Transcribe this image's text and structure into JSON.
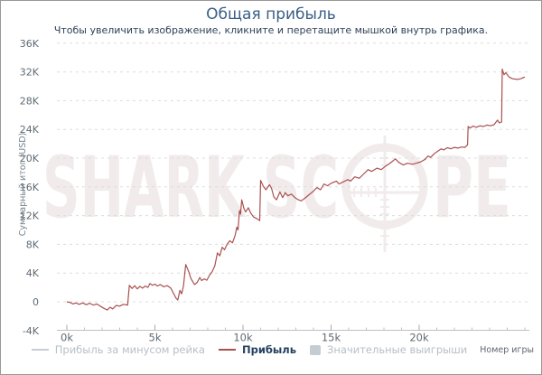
{
  "header": {
    "title": "Общая прибыль",
    "subtitle": "Чтобы увеличить изображение, кликните и перетащите мышкой внутрь графика."
  },
  "colors": {
    "series_line": "#aa5050",
    "grid": "#dcdcdc",
    "axis_line": "#c0c0c0",
    "tick_text": "#606b74",
    "axis_title_text": "#76828c",
    "title_text": "#3a5f86",
    "subtitle_text": "#2e4257",
    "legend_inactive_text": "#b7bfc7",
    "legend_inactive_marker": "#c6ccd3",
    "legend_active_text": "#24405e",
    "watermark": "#f1ebeb",
    "window_border": "#999999"
  },
  "legend": {
    "items": [
      {
        "label": "Прибыль за минусом рейка",
        "marker": "line",
        "active": false
      },
      {
        "label": "Прибыль",
        "marker": "line",
        "active": true
      },
      {
        "label": "Значительные выигрыши",
        "marker": "square",
        "active": false
      }
    ]
  },
  "watermark": {
    "text_left": "SHARK SC",
    "text_right": "PE"
  },
  "chart_data": {
    "type": "line",
    "title": "Общая прибыль",
    "xlabel": "Номер игры",
    "ylabel": "Суммарный итог (USD)",
    "xlim": [
      0,
      27
    ],
    "ylim": [
      -4,
      36
    ],
    "grid": true,
    "legend_position": "bottom",
    "x_ticks": [
      {
        "value": 0,
        "label": "0k"
      },
      {
        "value": 5,
        "label": "5k"
      },
      {
        "value": 10,
        "label": "10k"
      },
      {
        "value": 15,
        "label": "15k"
      },
      {
        "value": 20,
        "label": "20k"
      }
    ],
    "x_minor_tick_step": 1,
    "x_minor_tick_max": 26,
    "y_ticks": [
      {
        "value": 36,
        "label": "36K"
      },
      {
        "value": 32,
        "label": "32K"
      },
      {
        "value": 28,
        "label": "28K"
      },
      {
        "value": 24,
        "label": "24K"
      },
      {
        "value": 20,
        "label": "20K"
      },
      {
        "value": 16,
        "label": "16K"
      },
      {
        "value": 12,
        "label": "12K"
      },
      {
        "value": 8,
        "label": "8K"
      },
      {
        "value": 4,
        "label": "4K"
      },
      {
        "value": 0,
        "label": "0"
      },
      {
        "value": -4,
        "label": "-4K"
      }
    ],
    "series": [
      {
        "name": "Прибыль",
        "color": "#aa5050",
        "x_unit": "thousand games",
        "y_unit": "thousand USD",
        "points": [
          [
            0,
            0
          ],
          [
            0.2,
            -0.1
          ],
          [
            0.35,
            -0.3
          ],
          [
            0.5,
            -0.15
          ],
          [
            0.7,
            -0.35
          ],
          [
            0.9,
            -0.15
          ],
          [
            1.1,
            -0.4
          ],
          [
            1.3,
            -0.2
          ],
          [
            1.5,
            -0.45
          ],
          [
            1.7,
            -0.3
          ],
          [
            1.9,
            -0.6
          ],
          [
            2.1,
            -0.9
          ],
          [
            2.3,
            -1.15
          ],
          [
            2.45,
            -0.75
          ],
          [
            2.6,
            -1.0
          ],
          [
            2.8,
            -0.5
          ],
          [
            3.0,
            -0.6
          ],
          [
            3.2,
            -0.35
          ],
          [
            3.45,
            -0.45
          ],
          [
            3.55,
            2.3
          ],
          [
            3.7,
            1.85
          ],
          [
            3.85,
            2.25
          ],
          [
            4.0,
            1.8
          ],
          [
            4.15,
            2.15
          ],
          [
            4.3,
            1.9
          ],
          [
            4.45,
            2.2
          ],
          [
            4.6,
            2.0
          ],
          [
            4.72,
            2.55
          ],
          [
            4.85,
            2.3
          ],
          [
            5.0,
            2.45
          ],
          [
            5.15,
            2.2
          ],
          [
            5.3,
            2.4
          ],
          [
            5.5,
            2.1
          ],
          [
            5.7,
            2.25
          ],
          [
            5.9,
            1.9
          ],
          [
            6.05,
            1.2
          ],
          [
            6.2,
            0.5
          ],
          [
            6.3,
            0.25
          ],
          [
            6.42,
            1.6
          ],
          [
            6.52,
            1.1
          ],
          [
            6.62,
            2.2
          ],
          [
            6.75,
            5.2
          ],
          [
            6.9,
            4.3
          ],
          [
            7.05,
            3.2
          ],
          [
            7.25,
            2.4
          ],
          [
            7.4,
            2.7
          ],
          [
            7.55,
            3.4
          ],
          [
            7.65,
            2.95
          ],
          [
            7.8,
            3.2
          ],
          [
            7.95,
            3.0
          ],
          [
            8.1,
            3.7
          ],
          [
            8.25,
            4.2
          ],
          [
            8.4,
            5.0
          ],
          [
            8.55,
            6.8
          ],
          [
            8.68,
            6.4
          ],
          [
            8.82,
            7.6
          ],
          [
            8.95,
            7.25
          ],
          [
            9.1,
            8.0
          ],
          [
            9.25,
            8.5
          ],
          [
            9.4,
            8.2
          ],
          [
            9.55,
            9.2
          ],
          [
            9.65,
            10.4
          ],
          [
            9.72,
            10.0
          ],
          [
            9.8,
            12.7
          ],
          [
            9.86,
            12.2
          ],
          [
            9.93,
            14.2
          ],
          [
            10.05,
            13.0
          ],
          [
            10.15,
            12.5
          ],
          [
            10.3,
            13.1
          ],
          [
            10.45,
            12.3
          ],
          [
            10.6,
            11.8
          ],
          [
            10.78,
            11.6
          ],
          [
            10.95,
            11.3
          ],
          [
            11.0,
            16.9
          ],
          [
            11.15,
            16.1
          ],
          [
            11.3,
            15.6
          ],
          [
            11.5,
            16.3
          ],
          [
            11.62,
            15.8
          ],
          [
            11.75,
            14.6
          ],
          [
            11.9,
            14.2
          ],
          [
            12.1,
            15.3
          ],
          [
            12.25,
            14.5
          ],
          [
            12.4,
            15.2
          ],
          [
            12.55,
            14.75
          ],
          [
            12.75,
            15.0
          ],
          [
            12.95,
            14.5
          ],
          [
            13.15,
            14.2
          ],
          [
            13.3,
            14.05
          ],
          [
            13.5,
            14.4
          ],
          [
            13.75,
            14.9
          ],
          [
            13.95,
            15.3
          ],
          [
            14.2,
            15.9
          ],
          [
            14.4,
            15.6
          ],
          [
            14.6,
            16.4
          ],
          [
            14.8,
            16.15
          ],
          [
            15.0,
            16.5
          ],
          [
            15.3,
            16.8
          ],
          [
            15.45,
            16.4
          ],
          [
            15.7,
            16.7
          ],
          [
            15.95,
            17.0
          ],
          [
            16.1,
            16.8
          ],
          [
            16.35,
            17.4
          ],
          [
            16.6,
            17.2
          ],
          [
            16.85,
            17.8
          ],
          [
            17.1,
            18.4
          ],
          [
            17.3,
            18.15
          ],
          [
            17.6,
            18.6
          ],
          [
            17.85,
            18.4
          ],
          [
            18.1,
            18.9
          ],
          [
            18.35,
            19.3
          ],
          [
            18.65,
            19.9
          ],
          [
            18.85,
            19.4
          ],
          [
            19.1,
            19.05
          ],
          [
            19.35,
            19.3
          ],
          [
            19.6,
            19.15
          ],
          [
            19.85,
            19.3
          ],
          [
            20.1,
            19.5
          ],
          [
            20.35,
            19.85
          ],
          [
            20.5,
            20.3
          ],
          [
            20.65,
            20.1
          ],
          [
            20.85,
            20.6
          ],
          [
            21.05,
            20.95
          ],
          [
            21.25,
            21.3
          ],
          [
            21.4,
            21.15
          ],
          [
            21.6,
            21.45
          ],
          [
            21.8,
            21.3
          ],
          [
            22.0,
            21.5
          ],
          [
            22.2,
            21.4
          ],
          [
            22.4,
            21.55
          ],
          [
            22.6,
            21.5
          ],
          [
            22.75,
            21.85
          ],
          [
            22.78,
            24.4
          ],
          [
            22.9,
            24.2
          ],
          [
            23.05,
            24.45
          ],
          [
            23.25,
            24.3
          ],
          [
            23.45,
            24.5
          ],
          [
            23.65,
            24.4
          ],
          [
            23.85,
            24.6
          ],
          [
            24.05,
            24.5
          ],
          [
            24.25,
            24.65
          ],
          [
            24.45,
            25.3
          ],
          [
            24.55,
            24.9
          ],
          [
            24.68,
            25.05
          ],
          [
            24.72,
            32.4
          ],
          [
            24.82,
            31.6
          ],
          [
            24.92,
            31.9
          ],
          [
            25.1,
            31.3
          ],
          [
            25.3,
            31.05
          ],
          [
            25.6,
            30.95
          ],
          [
            25.8,
            31.1
          ],
          [
            26.0,
            31.3
          ]
        ]
      }
    ]
  }
}
